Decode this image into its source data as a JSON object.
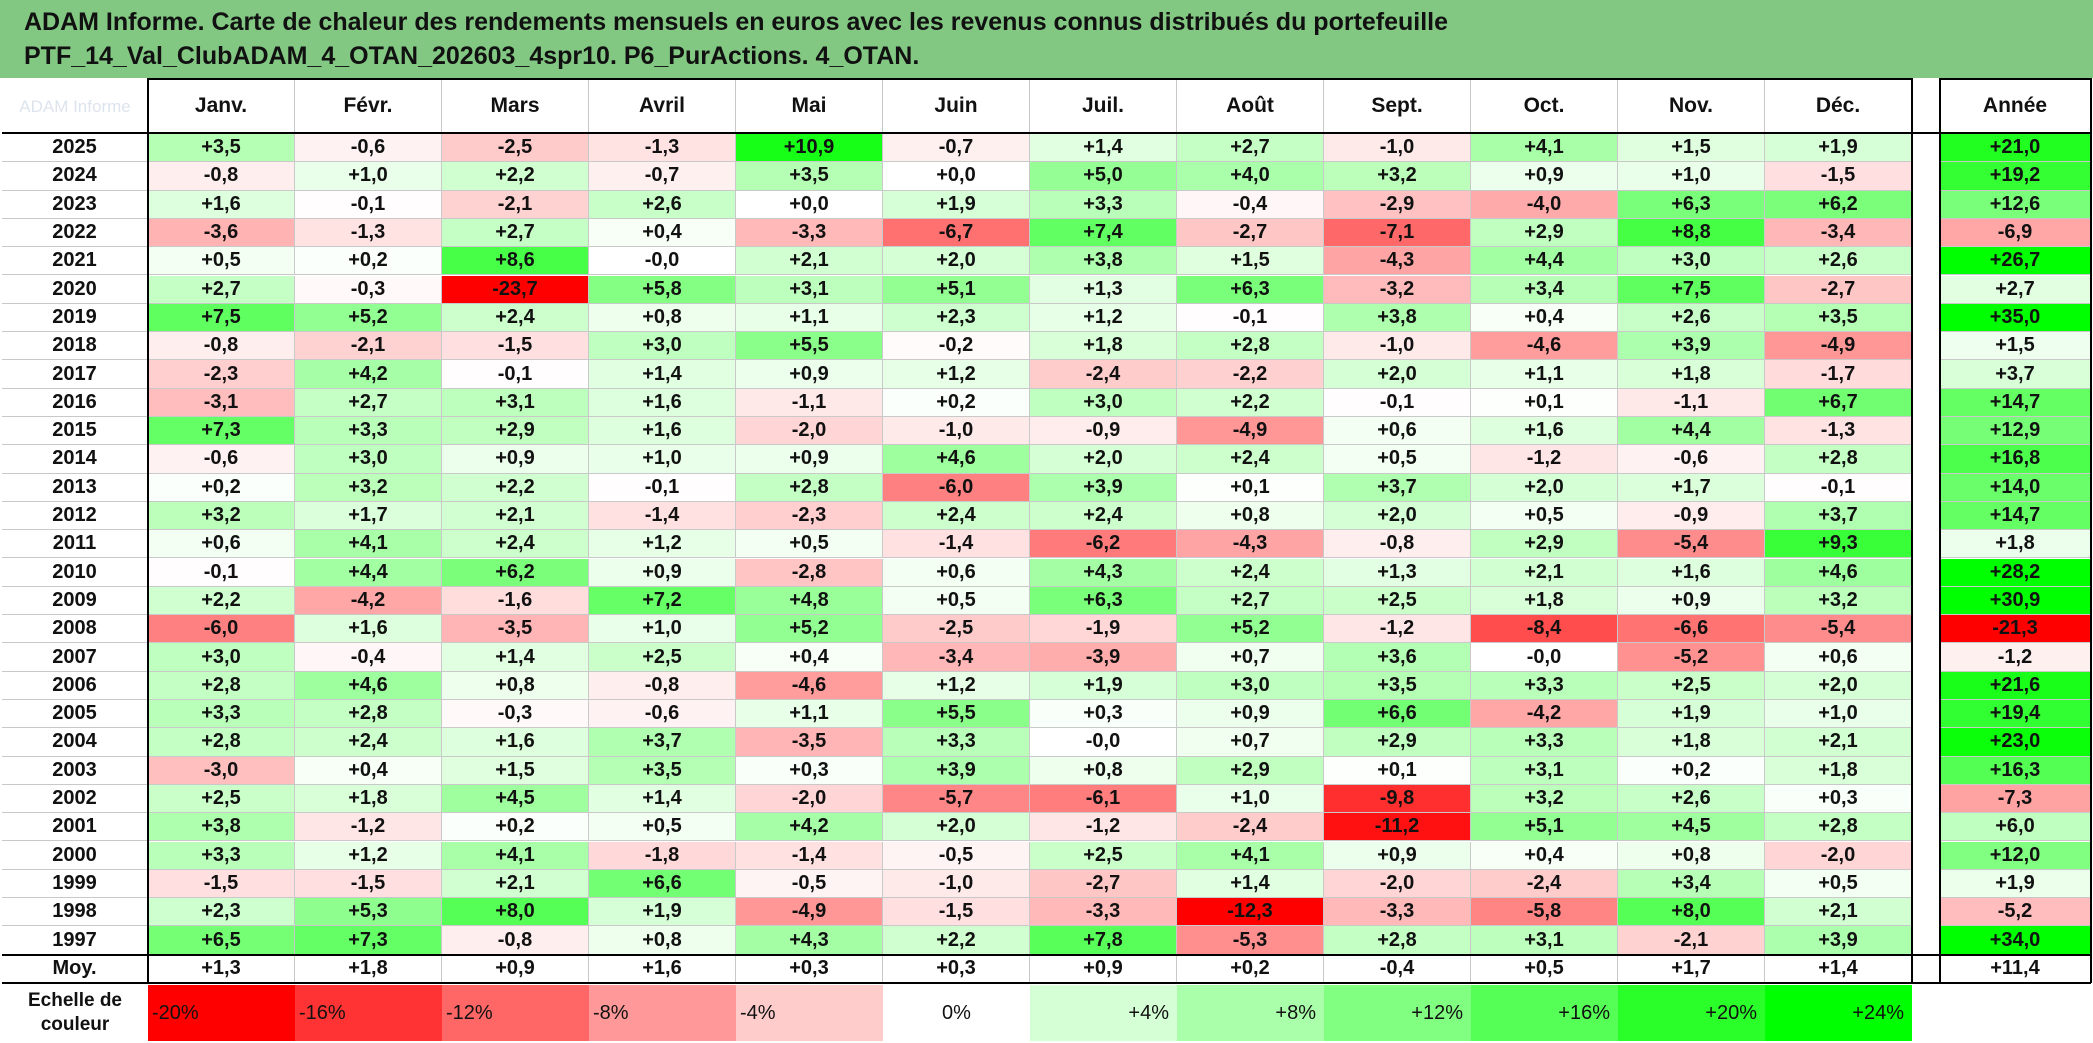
{
  "title_line1": "ADAM Informe. Carte de chaleur des rendements mensuels en euros avec les revenus connus distribués du portefeuille",
  "title_line2": "PTF_14_Val_ClubADAM_4_OTAN_202603_4spr10. P6_PurActions. 4_OTAN.",
  "corner_logo_text": "ADAM Informe",
  "chart_data": {
    "type": "heatmap",
    "title": "ADAM Informe. Carte de chaleur des rendements mensuels en euros avec les revenus connus distribués du portefeuille PTF_14_Val_ClubADAM_4_OTAN_202603_4spr10. P6_PurActions. 4_OTAN.",
    "columns": [
      "Janv.",
      "Févr.",
      "Mars",
      "Avril",
      "Mai",
      "Juin",
      "Juil.",
      "Août",
      "Sept.",
      "Oct.",
      "Nov.",
      "Déc."
    ],
    "annual_label": "Année",
    "rows": [
      {
        "year": "2025",
        "values": [
          "+3,5",
          "-0,6",
          "-2,5",
          "-1,3",
          "+10,9",
          "-0,7",
          "+1,4",
          "+2,7",
          "-1,0",
          "+4,1",
          "+1,5",
          "+1,9"
        ],
        "annual": "+21,0"
      },
      {
        "year": "2024",
        "values": [
          "-0,8",
          "+1,0",
          "+2,2",
          "-0,7",
          "+3,5",
          "+0,0",
          "+5,0",
          "+4,0",
          "+3,2",
          "+0,9",
          "+1,0",
          "-1,5"
        ],
        "annual": "+19,2"
      },
      {
        "year": "2023",
        "values": [
          "+1,6",
          "-0,1",
          "-2,1",
          "+2,6",
          "+0,0",
          "+1,9",
          "+3,3",
          "-0,4",
          "-2,9",
          "-4,0",
          "+6,3",
          "+6,2"
        ],
        "annual": "+12,6"
      },
      {
        "year": "2022",
        "values": [
          "-3,6",
          "-1,3",
          "+2,7",
          "+0,4",
          "-3,3",
          "-6,7",
          "+7,4",
          "-2,7",
          "-7,1",
          "+2,9",
          "+8,8",
          "-3,4"
        ],
        "annual": "-6,9"
      },
      {
        "year": "2021",
        "values": [
          "+0,5",
          "+0,2",
          "+8,6",
          "-0,0",
          "+2,1",
          "+2,0",
          "+3,8",
          "+1,5",
          "-4,3",
          "+4,4",
          "+3,0",
          "+2,6"
        ],
        "annual": "+26,7"
      },
      {
        "year": "2020",
        "values": [
          "+2,7",
          "-0,3",
          "-23,7",
          "+5,8",
          "+3,1",
          "+5,1",
          "+1,3",
          "+6,3",
          "-3,2",
          "+3,4",
          "+7,5",
          "-2,7"
        ],
        "annual": "+2,7"
      },
      {
        "year": "2019",
        "values": [
          "+7,5",
          "+5,2",
          "+2,4",
          "+0,8",
          "+1,1",
          "+2,3",
          "+1,2",
          "-0,1",
          "+3,8",
          "+0,4",
          "+2,6",
          "+3,5"
        ],
        "annual": "+35,0"
      },
      {
        "year": "2018",
        "values": [
          "-0,8",
          "-2,1",
          "-1,5",
          "+3,0",
          "+5,5",
          "-0,2",
          "+1,8",
          "+2,8",
          "-1,0",
          "-4,6",
          "+3,9",
          "-4,9"
        ],
        "annual": "+1,5"
      },
      {
        "year": "2017",
        "values": [
          "-2,3",
          "+4,2",
          "-0,1",
          "+1,4",
          "+0,9",
          "+1,2",
          "-2,4",
          "-2,2",
          "+2,0",
          "+1,1",
          "+1,8",
          "-1,7"
        ],
        "annual": "+3,7"
      },
      {
        "year": "2016",
        "values": [
          "-3,1",
          "+2,7",
          "+3,1",
          "+1,6",
          "-1,1",
          "+0,2",
          "+3,0",
          "+2,2",
          "-0,1",
          "+0,1",
          "-1,1",
          "+6,7"
        ],
        "annual": "+14,7"
      },
      {
        "year": "2015",
        "values": [
          "+7,3",
          "+3,3",
          "+2,9",
          "+1,6",
          "-2,0",
          "-1,0",
          "-0,9",
          "-4,9",
          "+0,6",
          "+1,6",
          "+4,4",
          "-1,3"
        ],
        "annual": "+12,9"
      },
      {
        "year": "2014",
        "values": [
          "-0,6",
          "+3,0",
          "+0,9",
          "+1,0",
          "+0,9",
          "+4,6",
          "+2,0",
          "+2,4",
          "+0,5",
          "-1,2",
          "-0,6",
          "+2,8"
        ],
        "annual": "+16,8"
      },
      {
        "year": "2013",
        "values": [
          "+0,2",
          "+3,2",
          "+2,2",
          "-0,1",
          "+2,8",
          "-6,0",
          "+3,9",
          "+0,1",
          "+3,7",
          "+2,0",
          "+1,7",
          "-0,1"
        ],
        "annual": "+14,0"
      },
      {
        "year": "2012",
        "values": [
          "+3,2",
          "+1,7",
          "+2,1",
          "-1,4",
          "-2,3",
          "+2,4",
          "+2,4",
          "+0,8",
          "+2,0",
          "+0,5",
          "-0,9",
          "+3,7"
        ],
        "annual": "+14,7"
      },
      {
        "year": "2011",
        "values": [
          "+0,6",
          "+4,1",
          "+2,4",
          "+1,2",
          "+0,5",
          "-1,4",
          "-6,2",
          "-4,3",
          "-0,8",
          "+2,9",
          "-5,4",
          "+9,3"
        ],
        "annual": "+1,8"
      },
      {
        "year": "2010",
        "values": [
          "-0,1",
          "+4,4",
          "+6,2",
          "+0,9",
          "-2,8",
          "+0,6",
          "+4,3",
          "+2,4",
          "+1,3",
          "+2,1",
          "+1,6",
          "+4,6"
        ],
        "annual": "+28,2"
      },
      {
        "year": "2009",
        "values": [
          "+2,2",
          "-4,2",
          "-1,6",
          "+7,2",
          "+4,8",
          "+0,5",
          "+6,3",
          "+2,7",
          "+2,5",
          "+1,8",
          "+0,9",
          "+3,2"
        ],
        "annual": "+30,9"
      },
      {
        "year": "2008",
        "values": [
          "-6,0",
          "+1,6",
          "-3,5",
          "+1,0",
          "+5,2",
          "-2,5",
          "-1,9",
          "+5,2",
          "-1,2",
          "-8,4",
          "-6,6",
          "-5,4"
        ],
        "annual": "-21,3"
      },
      {
        "year": "2007",
        "values": [
          "+3,0",
          "-0,4",
          "+1,4",
          "+2,5",
          "+0,4",
          "-3,4",
          "-3,9",
          "+0,7",
          "+3,6",
          "-0,0",
          "-5,2",
          "+0,6"
        ],
        "annual": "-1,2"
      },
      {
        "year": "2006",
        "values": [
          "+2,8",
          "+4,6",
          "+0,8",
          "-0,8",
          "-4,6",
          "+1,2",
          "+1,9",
          "+3,0",
          "+3,5",
          "+3,3",
          "+2,5",
          "+2,0"
        ],
        "annual": "+21,6"
      },
      {
        "year": "2005",
        "values": [
          "+3,3",
          "+2,8",
          "-0,3",
          "-0,6",
          "+1,1",
          "+5,5",
          "+0,3",
          "+0,9",
          "+6,6",
          "-4,2",
          "+1,9",
          "+1,0"
        ],
        "annual": "+19,4"
      },
      {
        "year": "2004",
        "values": [
          "+2,8",
          "+2,4",
          "+1,6",
          "+3,7",
          "-3,5",
          "+3,3",
          "-0,0",
          "+0,7",
          "+2,9",
          "+3,3",
          "+1,8",
          "+2,1"
        ],
        "annual": "+23,0"
      },
      {
        "year": "2003",
        "values": [
          "-3,0",
          "+0,4",
          "+1,5",
          "+3,5",
          "+0,3",
          "+3,9",
          "+0,8",
          "+2,9",
          "+0,1",
          "+3,1",
          "+0,2",
          "+1,8"
        ],
        "annual": "+16,3"
      },
      {
        "year": "2002",
        "values": [
          "+2,5",
          "+1,8",
          "+4,5",
          "+1,4",
          "-2,0",
          "-5,7",
          "-6,1",
          "+1,0",
          "-9,8",
          "+3,2",
          "+2,6",
          "+0,3"
        ],
        "annual": "-7,3"
      },
      {
        "year": "2001",
        "values": [
          "+3,8",
          "-1,2",
          "+0,2",
          "+0,5",
          "+4,2",
          "+2,0",
          "-1,2",
          "-2,4",
          "-11,2",
          "+5,1",
          "+4,5",
          "+2,8"
        ],
        "annual": "+6,0"
      },
      {
        "year": "2000",
        "values": [
          "+3,3",
          "+1,2",
          "+4,1",
          "-1,8",
          "-1,4",
          "-0,5",
          "+2,5",
          "+4,1",
          "+0,9",
          "+0,4",
          "+0,8",
          "-2,0"
        ],
        "annual": "+12,0"
      },
      {
        "year": "1999",
        "values": [
          "-1,5",
          "-1,5",
          "+2,1",
          "+6,6",
          "-0,5",
          "-1,0",
          "-2,7",
          "+1,4",
          "-2,0",
          "-2,4",
          "+3,4",
          "+0,5"
        ],
        "annual": "+1,9"
      },
      {
        "year": "1998",
        "values": [
          "+2,3",
          "+5,3",
          "+8,0",
          "+1,9",
          "-4,9",
          "-1,5",
          "-3,3",
          "-12,3",
          "-3,3",
          "-5,8",
          "+8,0",
          "+2,1"
        ],
        "annual": "-5,2"
      },
      {
        "year": "1997",
        "values": [
          "+6,5",
          "+7,3",
          "-0,8",
          "+0,8",
          "+4,3",
          "+2,2",
          "+7,8",
          "-5,3",
          "+2,8",
          "+3,1",
          "-2,1",
          "+3,9"
        ],
        "annual": "+34,0"
      }
    ],
    "average_row": {
      "label": "Moy.",
      "values": [
        "+1,3",
        "+1,8",
        "+0,9",
        "+1,6",
        "+0,3",
        "+0,3",
        "+0,9",
        "+0,2",
        "-0,4",
        "+0,5",
        "+1,7",
        "+1,4"
      ],
      "annual": "+11,4"
    },
    "color_scale": {
      "label_line1": "Echelle de",
      "label_line2": "couleur",
      "stops": [
        "-20%",
        "-16%",
        "-12%",
        "-8%",
        "-4%",
        "0%",
        "+4%",
        "+8%",
        "+12%",
        "+16%",
        "+20%",
        "+24%"
      ]
    },
    "colors": {
      "negative_max": "#ff0000",
      "neutral": "#ffffff",
      "positive_max": "#00ff00",
      "title_band": "#82c882"
    }
  }
}
